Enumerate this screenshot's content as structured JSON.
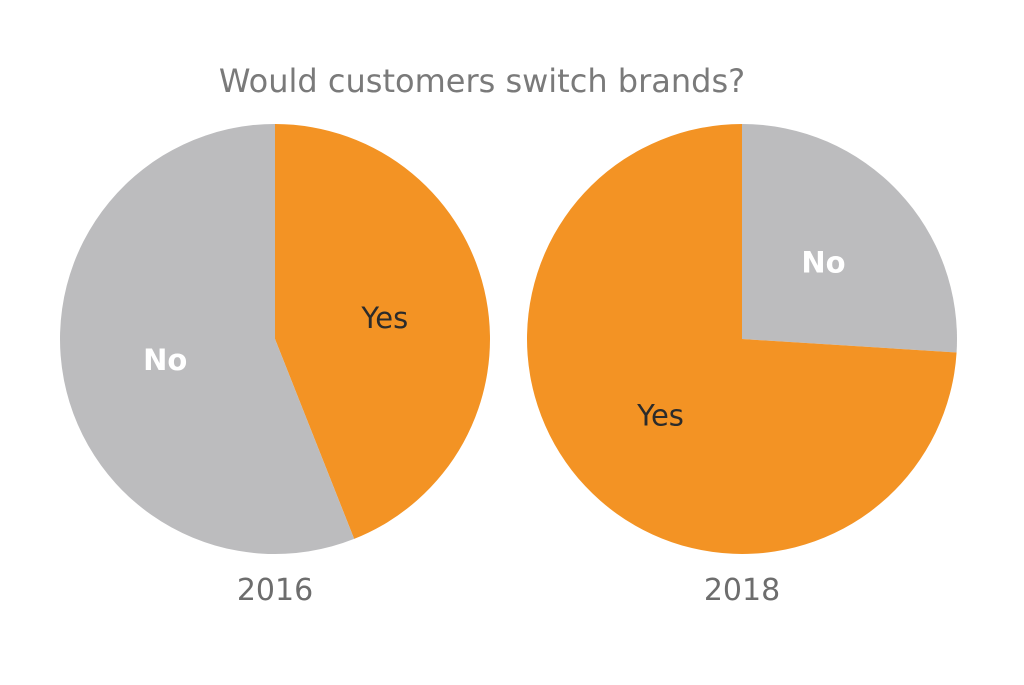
{
  "chart_data": {
    "type": "pie",
    "title": "Would customers switch brands?",
    "charts": [
      {
        "label": "2016",
        "slices": [
          {
            "label": "Yes",
            "value": 44,
            "color": "#f39324",
            "label_color": "#2b2b2b"
          },
          {
            "label": "No",
            "value": 56,
            "color": "#bcbcbe",
            "label_color": "#ffffff"
          }
        ]
      },
      {
        "label": "2018",
        "slices": [
          {
            "label": "No",
            "value": 26,
            "color": "#bcbcbe",
            "label_color": "#ffffff"
          },
          {
            "label": "Yes",
            "value": 74,
            "color": "#f39324",
            "label_color": "#2b2b2b"
          }
        ]
      }
    ]
  }
}
